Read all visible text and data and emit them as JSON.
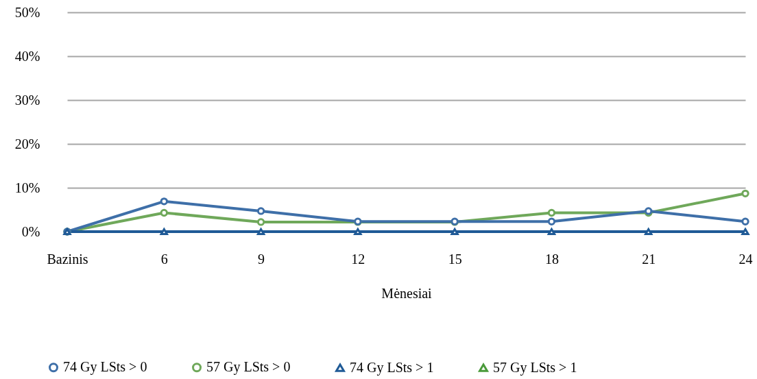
{
  "chart_data": {
    "type": "line",
    "xlabel": "Mėnesiai",
    "categories": [
      "Bazinis",
      "6",
      "9",
      "12",
      "15",
      "18",
      "21",
      "24"
    ],
    "series": [
      {
        "name": "74 Gy LSts > 0",
        "color": "#3e6fa8",
        "marker": "circle",
        "values": [
          0,
          6.9,
          4.7,
          2.3,
          2.3,
          2.3,
          4.7,
          2.3
        ]
      },
      {
        "name": "57 Gy LSts > 0",
        "color": "#6fa85a",
        "marker": "circle",
        "values": [
          0,
          4.3,
          2.2,
          2.2,
          2.2,
          4.3,
          4.3,
          8.7
        ]
      },
      {
        "name": "74 Gy LSts > 1",
        "color": "#1f5a96",
        "marker": "triangle",
        "values": [
          0,
          0,
          0,
          0,
          0,
          0,
          0,
          0
        ]
      },
      {
        "name": "57 Gy LSts > 1",
        "color": "#4a9a3a",
        "marker": "triangle",
        "values": [
          null,
          null,
          null,
          null,
          null,
          null,
          null,
          null
        ]
      }
    ],
    "ylim": [
      0,
      50
    ],
    "yticks": [
      {
        "value": 0,
        "label": "0%"
      },
      {
        "value": 10,
        "label": "10%"
      },
      {
        "value": 20,
        "label": "20%"
      },
      {
        "value": 30,
        "label": "30%"
      },
      {
        "value": 40,
        "label": "40%"
      },
      {
        "value": 50,
        "label": "50%"
      }
    ],
    "grid": "y",
    "legend": "bottom"
  }
}
